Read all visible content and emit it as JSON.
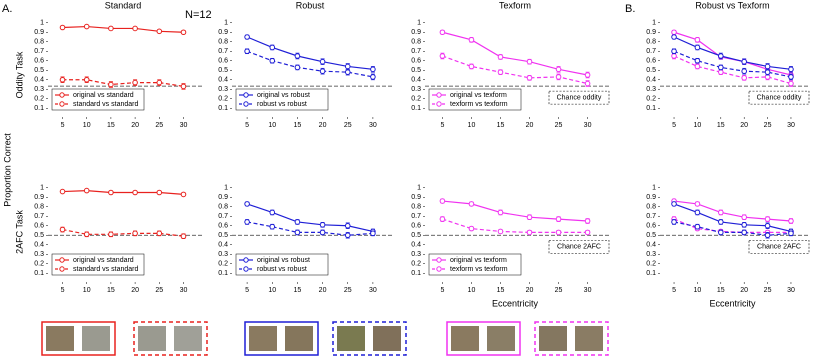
{
  "panel_labels": [
    "A.",
    "B."
  ],
  "n_label": "N=12",
  "ylabel": "Proportion Correct",
  "row_labels": [
    "Oddity Task",
    "2AFC Task"
  ],
  "chart_data": [
    {
      "type": "line",
      "title": "Standard",
      "x": [
        5,
        10,
        15,
        20,
        25,
        30
      ],
      "xlim": [
        2,
        33
      ],
      "xticks": [
        5,
        10,
        15,
        20,
        25,
        30
      ],
      "ylim": [
        0.05,
        1.05
      ],
      "yticks": [
        0.1,
        0.2,
        0.3,
        0.4,
        0.5,
        0.6,
        0.7,
        0.8,
        0.9,
        1
      ],
      "chance": 0.333,
      "legend": true,
      "series": [
        {
          "name": "original vs standard",
          "color": "#e8221f",
          "dash": false,
          "values": [
            0.95,
            0.96,
            0.94,
            0.94,
            0.91,
            0.9
          ],
          "errors": [
            0.015,
            0.012,
            0.012,
            0.012,
            0.015,
            0.015
          ]
        },
        {
          "name": "standard vs standard",
          "color": "#e8221f",
          "dash": true,
          "values": [
            0.4,
            0.4,
            0.35,
            0.37,
            0.37,
            0.33
          ],
          "errors": [
            0.03,
            0.03,
            0.03,
            0.03,
            0.03,
            0.03
          ]
        }
      ]
    },
    {
      "type": "line",
      "title": "Robust",
      "x": [
        5,
        10,
        15,
        20,
        25,
        30
      ],
      "xlim": [
        2,
        33
      ],
      "xticks": [
        5,
        10,
        15,
        20,
        25,
        30
      ],
      "ylim": [
        0.05,
        1.05
      ],
      "yticks": [
        0.1,
        0.2,
        0.3,
        0.4,
        0.5,
        0.6,
        0.7,
        0.8,
        0.9,
        1
      ],
      "chance": 0.333,
      "legend": true,
      "series": [
        {
          "name": "original vs robust",
          "color": "#1f1fd6",
          "dash": false,
          "values": [
            0.85,
            0.74,
            0.65,
            0.59,
            0.54,
            0.51
          ],
          "errors": [
            0.02,
            0.025,
            0.03,
            0.03,
            0.03,
            0.03
          ]
        },
        {
          "name": "robust vs robust",
          "color": "#1f1fd6",
          "dash": true,
          "values": [
            0.7,
            0.6,
            0.53,
            0.49,
            0.48,
            0.43
          ],
          "errors": [
            0.025,
            0.025,
            0.025,
            0.03,
            0.03,
            0.03
          ]
        }
      ]
    },
    {
      "type": "line",
      "title": "Texform",
      "x": [
        5,
        10,
        15,
        20,
        25,
        30
      ],
      "xlim": [
        2,
        33
      ],
      "xticks": [
        5,
        10,
        15,
        20,
        25,
        30
      ],
      "ylim": [
        0.05,
        1.05
      ],
      "yticks": [
        0.1,
        0.2,
        0.3,
        0.4,
        0.5,
        0.6,
        0.7,
        0.8,
        0.9,
        1
      ],
      "chance": 0.333,
      "chance_label": "Chance oddity",
      "legend": true,
      "series": [
        {
          "name": "original vs texform",
          "color": "#f032f0",
          "dash": false,
          "values": [
            0.9,
            0.82,
            0.64,
            0.59,
            0.51,
            0.45
          ],
          "errors": [
            0.02,
            0.025,
            0.025,
            0.025,
            0.03,
            0.03
          ]
        },
        {
          "name": "texform vs texform",
          "color": "#f032f0",
          "dash": true,
          "values": [
            0.65,
            0.54,
            0.48,
            0.42,
            0.43,
            0.36
          ],
          "errors": [
            0.03,
            0.025,
            0.025,
            0.025,
            0.03,
            0.03
          ]
        }
      ]
    },
    {
      "type": "line",
      "title": "Robust vs Texform",
      "x": [
        5,
        10,
        15,
        20,
        25,
        30
      ],
      "xlim": [
        2,
        33
      ],
      "xticks": [
        5,
        10,
        15,
        20,
        25,
        30
      ],
      "ylim": [
        0.05,
        1.05
      ],
      "yticks": [
        0.1,
        0.2,
        0.3,
        0.4,
        0.5,
        0.6,
        0.7,
        0.8,
        0.9,
        1
      ],
      "chance": 0.333,
      "chance_label": "Chance oddity",
      "legend": false,
      "series": [
        {
          "color": "#f032f0",
          "dash": false,
          "values": [
            0.9,
            0.82,
            0.64,
            0.59,
            0.51,
            0.45
          ],
          "errors": [
            0.02,
            0.025,
            0.025,
            0.025,
            0.03,
            0.03
          ]
        },
        {
          "color": "#f032f0",
          "dash": true,
          "values": [
            0.65,
            0.54,
            0.48,
            0.42,
            0.43,
            0.36
          ],
          "errors": [
            0.03,
            0.025,
            0.025,
            0.025,
            0.03,
            0.03
          ]
        },
        {
          "color": "#1f1fd6",
          "dash": false,
          "values": [
            0.85,
            0.74,
            0.65,
            0.59,
            0.54,
            0.51
          ],
          "errors": [
            0.02,
            0.025,
            0.03,
            0.03,
            0.03,
            0.03
          ]
        },
        {
          "color": "#1f1fd6",
          "dash": true,
          "values": [
            0.7,
            0.6,
            0.53,
            0.49,
            0.48,
            0.43
          ],
          "errors": [
            0.025,
            0.025,
            0.025,
            0.03,
            0.03,
            0.03
          ]
        }
      ]
    },
    {
      "type": "line",
      "x": [
        5,
        10,
        15,
        20,
        25,
        30
      ],
      "xlim": [
        2,
        33
      ],
      "xticks": [
        5,
        10,
        15,
        20,
        25,
        30
      ],
      "ylim": [
        0.05,
        1.05
      ],
      "yticks": [
        0.1,
        0.2,
        0.3,
        0.4,
        0.5,
        0.6,
        0.7,
        0.8,
        0.9,
        1
      ],
      "chance": 0.5,
      "legend": true,
      "series": [
        {
          "name": "original vs standard",
          "color": "#e8221f",
          "dash": false,
          "values": [
            0.96,
            0.97,
            0.95,
            0.95,
            0.95,
            0.93
          ],
          "errors": [
            0.012,
            0.01,
            0.01,
            0.01,
            0.01,
            0.012
          ]
        },
        {
          "name": "standard vs standard",
          "color": "#e8221f",
          "dash": true,
          "values": [
            0.56,
            0.51,
            0.51,
            0.52,
            0.52,
            0.49
          ],
          "errors": [
            0.025,
            0.025,
            0.025,
            0.025,
            0.025,
            0.025
          ]
        }
      ]
    },
    {
      "type": "line",
      "x": [
        5,
        10,
        15,
        20,
        25,
        30
      ],
      "xlim": [
        2,
        33
      ],
      "xticks": [
        5,
        10,
        15,
        20,
        25,
        30
      ],
      "ylim": [
        0.05,
        1.05
      ],
      "yticks": [
        0.1,
        0.2,
        0.3,
        0.4,
        0.5,
        0.6,
        0.7,
        0.8,
        0.9,
        1
      ],
      "chance": 0.5,
      "legend": true,
      "series": [
        {
          "name": "original vs robust",
          "color": "#1f1fd6",
          "dash": false,
          "values": [
            0.83,
            0.74,
            0.64,
            0.61,
            0.6,
            0.54
          ],
          "errors": [
            0.02,
            0.025,
            0.025,
            0.025,
            0.03,
            0.025
          ]
        },
        {
          "name": "robust vs robust",
          "color": "#1f1fd6",
          "dash": true,
          "values": [
            0.64,
            0.59,
            0.53,
            0.53,
            0.5,
            0.52
          ],
          "errors": [
            0.025,
            0.025,
            0.025,
            0.025,
            0.03,
            0.025
          ]
        }
      ]
    },
    {
      "type": "line",
      "x": [
        5,
        10,
        15,
        20,
        25,
        30
      ],
      "xlim": [
        2,
        33
      ],
      "xticks": [
        5,
        10,
        15,
        20,
        25,
        30
      ],
      "ylim": [
        0.05,
        1.05
      ],
      "yticks": [
        0.1,
        0.2,
        0.3,
        0.4,
        0.5,
        0.6,
        0.7,
        0.8,
        0.9,
        1
      ],
      "chance": 0.5,
      "chance_label": "Chance 2AFC",
      "xlabel": "Eccentricity",
      "legend": true,
      "series": [
        {
          "name": "original vs texform",
          "color": "#f032f0",
          "dash": false,
          "values": [
            0.86,
            0.83,
            0.74,
            0.69,
            0.67,
            0.65
          ],
          "errors": [
            0.02,
            0.02,
            0.025,
            0.025,
            0.025,
            0.025
          ]
        },
        {
          "name": "texform vs texform",
          "color": "#f032f0",
          "dash": true,
          "values": [
            0.67,
            0.57,
            0.54,
            0.53,
            0.53,
            0.53
          ],
          "errors": [
            0.025,
            0.02,
            0.02,
            0.02,
            0.02,
            0.02
          ]
        }
      ]
    },
    {
      "type": "line",
      "x": [
        5,
        10,
        15,
        20,
        25,
        30
      ],
      "xlim": [
        2,
        33
      ],
      "xticks": [
        5,
        10,
        15,
        20,
        25,
        30
      ],
      "ylim": [
        0.05,
        1.05
      ],
      "yticks": [
        0.1,
        0.2,
        0.3,
        0.4,
        0.5,
        0.6,
        0.7,
        0.8,
        0.9,
        1
      ],
      "chance": 0.5,
      "chance_label": "Chance 2AFC",
      "xlabel": "Eccentricity",
      "legend": false,
      "series": [
        {
          "color": "#f032f0",
          "dash": false,
          "values": [
            0.86,
            0.83,
            0.74,
            0.69,
            0.67,
            0.65
          ],
          "errors": [
            0.02,
            0.02,
            0.025,
            0.025,
            0.025,
            0.025
          ]
        },
        {
          "color": "#f032f0",
          "dash": true,
          "values": [
            0.67,
            0.57,
            0.54,
            0.53,
            0.53,
            0.53
          ],
          "errors": [
            0.025,
            0.02,
            0.02,
            0.02,
            0.02,
            0.02
          ]
        },
        {
          "color": "#1f1fd6",
          "dash": false,
          "values": [
            0.83,
            0.74,
            0.64,
            0.61,
            0.6,
            0.54
          ],
          "errors": [
            0.02,
            0.025,
            0.025,
            0.025,
            0.03,
            0.025
          ]
        },
        {
          "color": "#1f1fd6",
          "dash": true,
          "values": [
            0.64,
            0.59,
            0.53,
            0.53,
            0.5,
            0.52
          ],
          "errors": [
            0.025,
            0.025,
            0.025,
            0.025,
            0.03,
            0.025
          ]
        }
      ]
    }
  ]
}
